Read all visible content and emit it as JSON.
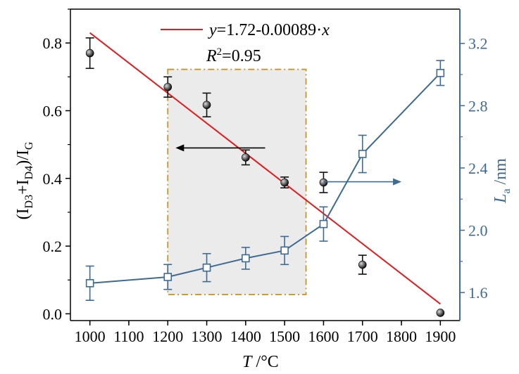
{
  "colors": {
    "fit_line": "#e41a1c",
    "left_series": "#111111",
    "right_series": "#3d6b93",
    "highlight_fill": "#ebebeb",
    "highlight_border": "#c9962a",
    "axis_right": "#3d6b93"
  },
  "chart_data": {
    "type": "scatter",
    "x_axis": {
      "label_var": "T",
      "label_unit": " /°C",
      "range": [
        950,
        1950
      ],
      "ticks": [
        1000,
        1100,
        1200,
        1300,
        1400,
        1500,
        1600,
        1700,
        1800,
        1900
      ]
    },
    "y_left_axis": {
      "label_prefix": "(I",
      "label_sub1": "D3",
      "label_mid": "+I",
      "label_sub2": "D4",
      "label_close": ")/I",
      "label_sub3": "G",
      "range": [
        -0.02,
        0.9
      ],
      "ticks": [
        "0.0",
        "0.2",
        "0.4",
        "0.6",
        "0.8"
      ]
    },
    "y_right_axis": {
      "label_var": "L",
      "label_sub": "a",
      "label_unit": " /nm",
      "range": [
        1.42,
        3.42
      ],
      "ticks": [
        "1.6",
        "2.0",
        "2.4",
        "2.8",
        "3.2"
      ]
    },
    "series": [
      {
        "axis": "left",
        "marker": "filled-circle",
        "x": [
          1000,
          1200,
          1300,
          1400,
          1500,
          1600,
          1700,
          1900
        ],
        "y": [
          0.77,
          0.67,
          0.617,
          0.462,
          0.388,
          0.388,
          0.145,
          0.003
        ],
        "err": [
          0.045,
          0.03,
          0.035,
          0.022,
          0.016,
          0.03,
          0.028,
          0.0
        ]
      },
      {
        "axis": "right",
        "marker": "open-square",
        "line": true,
        "x": [
          1000,
          1200,
          1300,
          1400,
          1500,
          1600,
          1700,
          1900
        ],
        "y": [
          1.66,
          1.7,
          1.76,
          1.82,
          1.87,
          2.04,
          2.49,
          3.01
        ],
        "err": [
          0.11,
          0.08,
          0.09,
          0.07,
          0.09,
          0.11,
          0.12,
          0.08
        ]
      }
    ],
    "fit": {
      "axis": "left",
      "intercept": 1.72,
      "slope": -0.00089,
      "x_range": [
        1000,
        1900
      ],
      "legend_y": "y",
      "legend_text": "=1.72-0.00089·",
      "legend_x": "x",
      "r2_base": "R",
      "r2_sup": "2",
      "r2_value": "=0.95"
    },
    "highlight_region": {
      "x": [
        1200,
        1555
      ],
      "y_left": [
        0.057,
        0.722
      ]
    },
    "annotations": [
      {
        "type": "arrow",
        "direction": "left",
        "axis": "left",
        "x_from": 1450,
        "x_to": 1220,
        "y": 0.49
      },
      {
        "type": "arrow",
        "direction": "right",
        "axis": "left",
        "x_from": 1600,
        "x_to": 1800,
        "y": 0.39
      }
    ]
  }
}
